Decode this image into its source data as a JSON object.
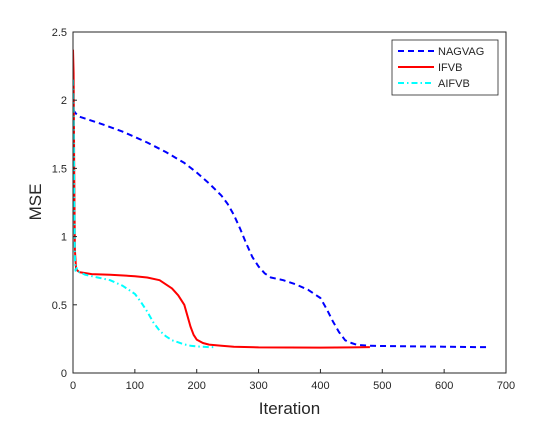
{
  "chart_data": {
    "type": "line",
    "title": "",
    "xlabel": "Iteration",
    "ylabel": "MSE",
    "xlim": [
      0,
      700
    ],
    "ylim": [
      0,
      2.5
    ],
    "xticks": [
      0,
      100,
      200,
      300,
      400,
      500,
      600,
      700
    ],
    "yticks": [
      0,
      0.5,
      1,
      1.5,
      2,
      2.5
    ],
    "xtick_labels": [
      "0",
      "100",
      "200",
      "300",
      "400",
      "500",
      "600",
      "700"
    ],
    "ytick_labels": [
      "0",
      "0.5",
      "1",
      "1.5",
      "2",
      "2.5"
    ],
    "grid": false,
    "legend_position": "top-right",
    "series": [
      {
        "name": "NAGVAG",
        "color": "#0000ff",
        "style": "dashed",
        "points": [
          [
            0,
            1.93
          ],
          [
            5,
            1.9
          ],
          [
            10,
            1.88
          ],
          [
            30,
            1.85
          ],
          [
            50,
            1.82
          ],
          [
            80,
            1.77
          ],
          [
            100,
            1.73
          ],
          [
            120,
            1.69
          ],
          [
            150,
            1.62
          ],
          [
            180,
            1.54
          ],
          [
            200,
            1.47
          ],
          [
            220,
            1.39
          ],
          [
            240,
            1.3
          ],
          [
            250,
            1.24
          ],
          [
            260,
            1.16
          ],
          [
            270,
            1.06
          ],
          [
            280,
            0.95
          ],
          [
            290,
            0.85
          ],
          [
            300,
            0.78
          ],
          [
            310,
            0.73
          ],
          [
            320,
            0.7
          ],
          [
            340,
            0.68
          ],
          [
            360,
            0.65
          ],
          [
            380,
            0.61
          ],
          [
            400,
            0.55
          ],
          [
            410,
            0.47
          ],
          [
            420,
            0.38
          ],
          [
            430,
            0.3
          ],
          [
            440,
            0.24
          ],
          [
            450,
            0.22
          ],
          [
            460,
            0.205
          ],
          [
            480,
            0.2
          ],
          [
            500,
            0.198
          ],
          [
            550,
            0.195
          ],
          [
            600,
            0.193
          ],
          [
            650,
            0.19
          ],
          [
            670,
            0.19
          ]
        ]
      },
      {
        "name": "IFVB",
        "color": "#ff0000",
        "style": "solid",
        "points": [
          [
            0,
            2.37
          ],
          [
            1,
            2.2
          ],
          [
            2,
            1.5
          ],
          [
            3,
            0.9
          ],
          [
            5,
            0.76
          ],
          [
            10,
            0.74
          ],
          [
            30,
            0.725
          ],
          [
            60,
            0.72
          ],
          [
            100,
            0.71
          ],
          [
            120,
            0.7
          ],
          [
            140,
            0.68
          ],
          [
            160,
            0.62
          ],
          [
            170,
            0.57
          ],
          [
            180,
            0.5
          ],
          [
            185,
            0.42
          ],
          [
            190,
            0.34
          ],
          [
            195,
            0.28
          ],
          [
            200,
            0.245
          ],
          [
            210,
            0.22
          ],
          [
            220,
            0.208
          ],
          [
            240,
            0.2
          ],
          [
            260,
            0.193
          ],
          [
            300,
            0.188
          ],
          [
            350,
            0.187
          ],
          [
            400,
            0.186
          ],
          [
            450,
            0.188
          ],
          [
            480,
            0.19
          ]
        ]
      },
      {
        "name": "AIFVB",
        "color": "#00ffff",
        "style": "dash-dot",
        "points": [
          [
            0,
            2.15
          ],
          [
            1,
            1.9
          ],
          [
            2,
            1.3
          ],
          [
            3,
            0.85
          ],
          [
            4,
            0.75
          ],
          [
            6,
            0.77
          ],
          [
            10,
            0.74
          ],
          [
            20,
            0.72
          ],
          [
            40,
            0.7
          ],
          [
            60,
            0.68
          ],
          [
            80,
            0.64
          ],
          [
            100,
            0.58
          ],
          [
            110,
            0.52
          ],
          [
            120,
            0.45
          ],
          [
            130,
            0.37
          ],
          [
            140,
            0.31
          ],
          [
            150,
            0.27
          ],
          [
            160,
            0.24
          ],
          [
            170,
            0.225
          ],
          [
            180,
            0.21
          ],
          [
            190,
            0.2
          ],
          [
            200,
            0.195
          ],
          [
            210,
            0.192
          ],
          [
            220,
            0.19
          ],
          [
            230,
            0.19
          ]
        ]
      }
    ]
  }
}
